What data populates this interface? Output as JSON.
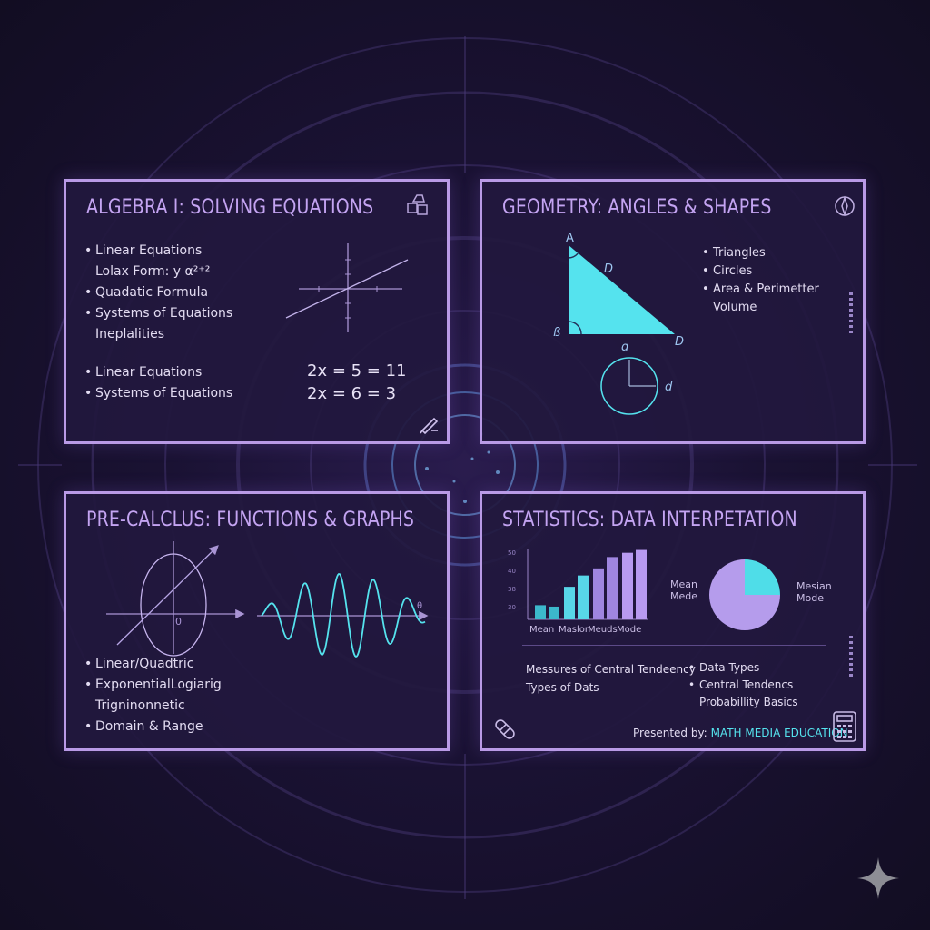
{
  "panels": {
    "algebra": {
      "title": "ALGEBRA I: SOLVING EQUATIONS",
      "items": [
        "Linear Equations",
        "Lolax Form: y α²⁺²",
        "Quadatic Formula",
        "Systems of Equations",
        "Ineplalities"
      ],
      "items2": [
        "Linear Equations",
        "Systems of Equations"
      ],
      "equations": [
        "2x = 5 = 11",
        "2x = 6 = 3"
      ],
      "icons": [
        "shapes-icon",
        "pen-icon"
      ]
    },
    "geometry": {
      "title": "GEOMETRY: ANGLES & SHAPES",
      "labels": {
        "a": "A",
        "b": "ß",
        "d1": "D",
        "d2": "D",
        "circle_top": "ɑ",
        "circle_right": "d"
      },
      "items": [
        "Triangles",
        "Circles",
        "Area & Perimetter",
        "Volume"
      ],
      "icons": [
        "compass-icon"
      ]
    },
    "precalc": {
      "title": "PRE-CALCLUS: FUNCTIONS & GRAPHS",
      "origin_label": "0",
      "axis_label": "θ",
      "items": [
        "Linear/Quadtric",
        "ExponentialLogiarig",
        "Trigninonnetic",
        "Domain & Range"
      ]
    },
    "statistics": {
      "title": "STATISTICS: DATA INTERPETATION",
      "legend_left": [
        "Mean",
        "Mede"
      ],
      "legend_right": [
        "Mesian",
        "Mode"
      ],
      "left_text": [
        "Messures of Central Tendeency",
        "Types of Dats"
      ],
      "right_items": [
        "Data Types",
        "Central Tendencs",
        "Probabillity Basics"
      ],
      "presented_prefix": "Presented by:",
      "presented_brand": "MATH MEDIA EDUCATION",
      "icons": [
        "bandage-icon",
        "calculator-icon"
      ]
    }
  },
  "chart_data": {
    "type": "bar",
    "categories": [
      "Mean",
      "Maslon",
      "Meuds",
      "Mode"
    ],
    "ytick_labels": [
      "50",
      "40",
      "38",
      "30"
    ],
    "series": [
      {
        "values": [
          1.0,
          2.3,
          3.6,
          4.7
        ]
      },
      {
        "values": [
          0.9,
          3.1,
          4.4,
          4.9
        ]
      }
    ],
    "colors": [
      "#3cb8cc",
      "#58d6e8",
      "#9f86e0",
      "#b89af0"
    ],
    "pie": {
      "slices": [
        0.25,
        0.75
      ],
      "colors": [
        "#4fdde8",
        "#b59cec"
      ]
    }
  },
  "colors": {
    "accent": "#b99ae6",
    "title": "#c4a4f2",
    "cyan": "#55e3ee",
    "text": "#e3dcf2"
  }
}
